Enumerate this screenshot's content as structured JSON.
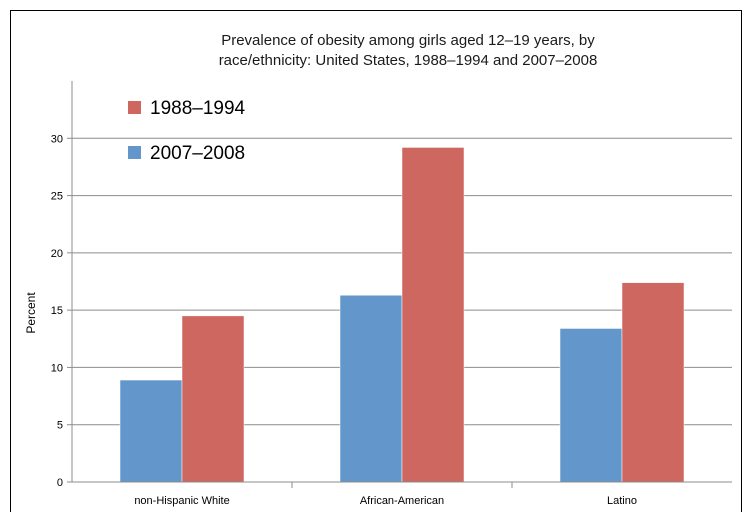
{
  "chart_data": {
    "type": "bar",
    "title_lines": [
      "Prevalence of obesity among girls aged 12–19 years, by",
      "race/ethnicity: United States, 1988–1994 and 2007–2008"
    ],
    "ylabel": "Percent",
    "xlabel": "",
    "ylim": [
      0,
      35
    ],
    "yticks": [
      0,
      5,
      10,
      15,
      20,
      25,
      30
    ],
    "grid": true,
    "legend_position": "top-left",
    "categories": [
      "non-Hispanic White",
      "African-American",
      "Latino"
    ],
    "series": [
      {
        "name": "2007–2008",
        "color": "#6397cb",
        "values": [
          8.9,
          16.3,
          13.4
        ]
      },
      {
        "name": "1988–1994",
        "color": "#cd675f",
        "values": [
          14.5,
          29.2,
          17.4
        ]
      }
    ],
    "legend_order": [
      1,
      0
    ]
  }
}
